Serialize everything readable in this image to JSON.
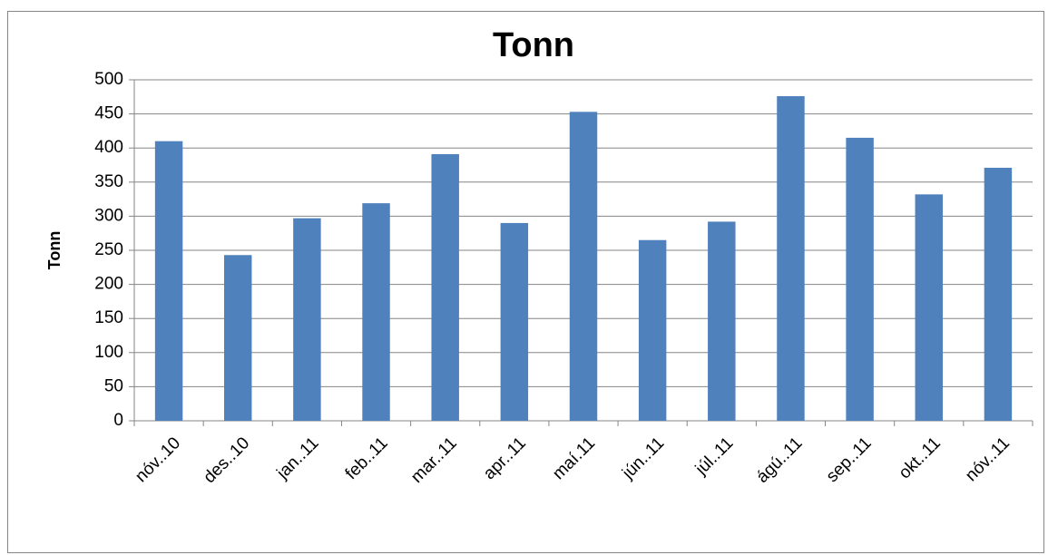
{
  "chart_data": {
    "type": "bar",
    "title": "Tonn",
    "y_label": "Tonn",
    "categories": [
      "nóv..10",
      "des..10",
      "jan..11",
      "feb..11",
      "mar..11",
      "apr..11",
      "maí.11",
      "jún..11",
      "júl..11",
      "ágú..11",
      "sep..11",
      "okt..11",
      "nóv..11"
    ],
    "values": [
      410,
      243,
      297,
      319,
      391,
      290,
      453,
      265,
      292,
      476,
      415,
      332,
      371
    ],
    "color": "#4f81bd",
    "ylim": [
      0,
      500
    ],
    "yticks": [
      0,
      50,
      100,
      150,
      200,
      250,
      300,
      350,
      400,
      450,
      500
    ],
    "grid": true
  }
}
